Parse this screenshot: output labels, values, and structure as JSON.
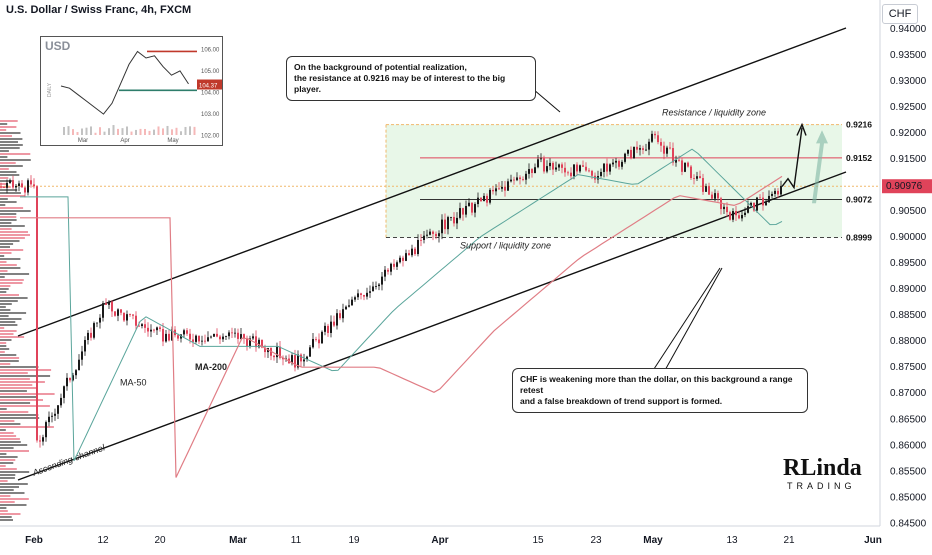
{
  "header": {
    "title": "U.S. Dollar / Swiss Franc, 4h, FXCM",
    "currency_badge": "CHF"
  },
  "colors": {
    "up": "#1a1a1a",
    "down": "#e0435a",
    "ma50": "#5aa59b",
    "ma200": "#e07d85",
    "zone_fill": "#d9f2d9",
    "zone_border": "#f0b86b",
    "resistance_line": "#e0435a",
    "arrow_projection": "#7fb6a4"
  },
  "chart_data": {
    "type": "line",
    "y_ticks": [
      "0.94000",
      "0.93500",
      "0.93000",
      "0.92500",
      "0.92000",
      "0.91500",
      "0.91000",
      "0.90500",
      "0.90000",
      "0.89500",
      "0.89000",
      "0.88500",
      "0.88000",
      "0.87500",
      "0.87000",
      "0.86500",
      "0.86000",
      "0.85500",
      "0.85000",
      "0.84500"
    ],
    "x_ticks": [
      "Feb",
      "12",
      "20",
      "Mar",
      "11",
      "19",
      "Apr",
      "15",
      "23",
      "May",
      "13",
      "21",
      "Jun"
    ],
    "ylim": [
      0.8445,
      0.9413
    ],
    "price_series": {
      "x": [
        "Feb",
        "12",
        "20",
        "Mar",
        "11",
        "19",
        "Apr",
        "15",
        "23",
        "May",
        "13",
        "21"
      ],
      "y": [
        0.859,
        0.887,
        0.881,
        0.881,
        0.876,
        0.888,
        0.902,
        0.914,
        0.912,
        0.919,
        0.904,
        0.9097
      ]
    },
    "last_price": "0.90976",
    "levels": [
      {
        "value": 0.9216,
        "label": "0.9216"
      },
      {
        "value": 0.9152,
        "label": "0.9152"
      },
      {
        "value": 0.9072,
        "label": "0.9072"
      },
      {
        "value": 0.8999,
        "label": "0.8999"
      }
    ],
    "labels": {
      "resistance_zone": "Resistance / liquidity zone",
      "support_zone": "Support / liquidity zone",
      "ma50": "MA-50",
      "ma200": "MA-200",
      "channel": "Ascending channel"
    }
  },
  "notes": {
    "top_line1": "On the background of potential realization,",
    "top_line2": "the resistance at 0.9216 may be of interest to the big player.",
    "bottom_line1": "CHF is weakening more than the dollar, on this background a range retest",
    "bottom_line2": "and a false breakdown of trend support is formed."
  },
  "inset": {
    "title": "USD",
    "y_ticks": [
      "106.00",
      "105.00",
      "104.37",
      "104.00",
      "103.00",
      "102.00"
    ],
    "x_ticks": [
      "Mar",
      "Apr",
      "May"
    ],
    "side_label": "DAILY"
  },
  "logo": {
    "main": "RLinda",
    "sub": "TRADING"
  }
}
